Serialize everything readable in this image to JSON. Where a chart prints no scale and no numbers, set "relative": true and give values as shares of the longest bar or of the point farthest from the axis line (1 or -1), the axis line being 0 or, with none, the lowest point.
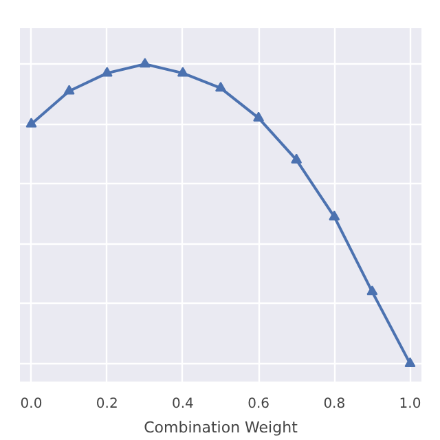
{
  "chart_data": {
    "type": "line",
    "xlabel": "Combination Weight",
    "relative": true,
    "x": [
      0.0,
      0.1,
      0.2,
      0.3,
      0.4,
      0.5,
      0.6,
      0.7,
      0.8,
      0.9,
      1.0
    ],
    "series": [
      {
        "color": "#4c72b0",
        "values": [
          0.8,
          0.91,
          0.97,
          1.0,
          0.97,
          0.92,
          0.82,
          0.68,
          0.49,
          0.24,
          0.0
        ]
      }
    ],
    "xlim": [
      -0.03,
      1.03
    ],
    "xticks": [
      {
        "value": 0.0,
        "label": "0.0"
      },
      0.2,
      0.4,
      0.6,
      0.8,
      {
        "value": 1.0,
        "label": "1.0"
      }
    ],
    "grid": true,
    "marker": "triangle",
    "line_style": "solid"
  }
}
